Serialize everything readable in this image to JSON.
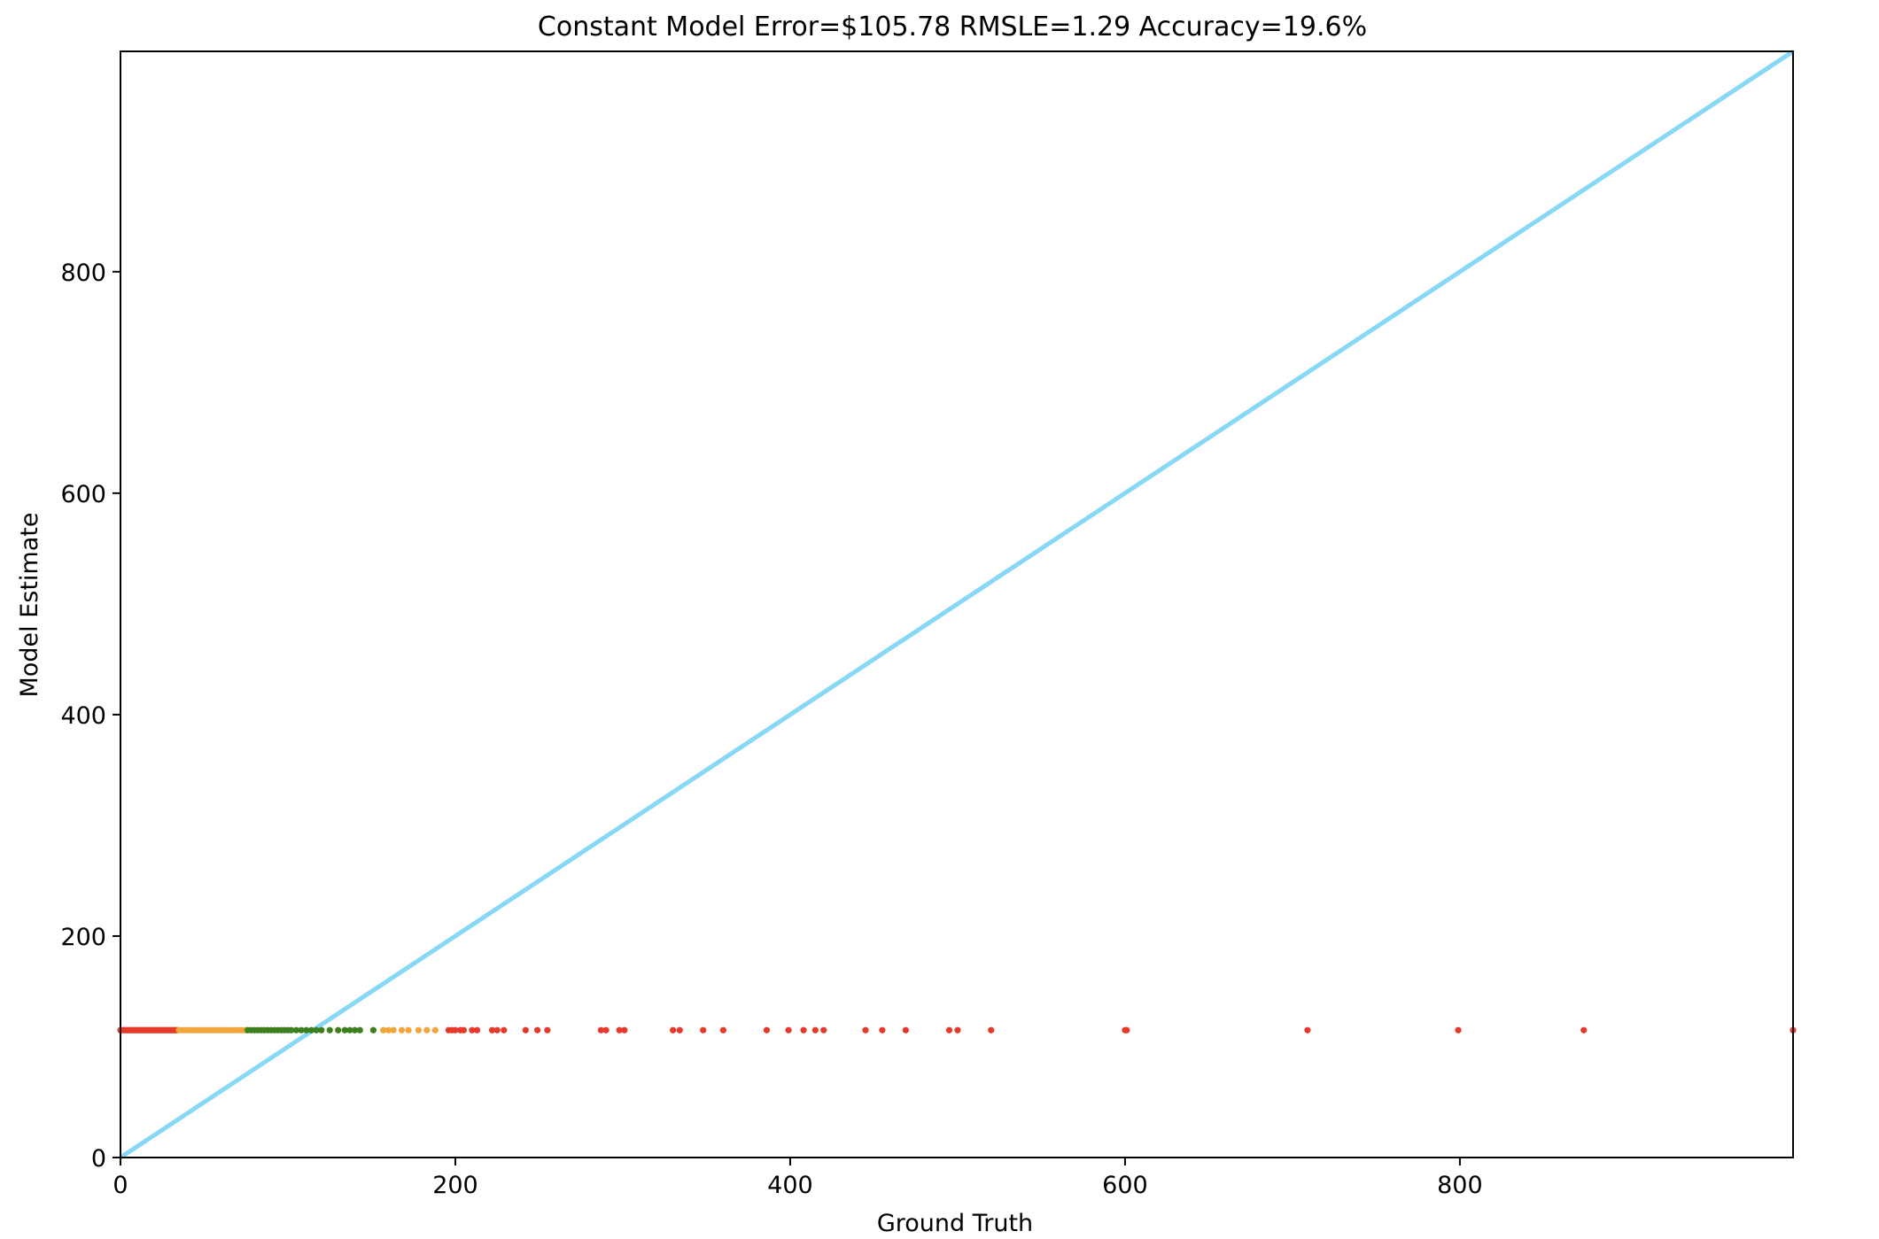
{
  "chart_data": {
    "type": "scatter",
    "title": "Constant Model  Error=$105.78  RMSLE=1.29  Accuracy=19.6%",
    "xlabel": "Ground Truth",
    "ylabel": "Model Estimate",
    "xlim": [
      0,
      999
    ],
    "ylim": [
      0,
      999
    ],
    "xticks": [
      0,
      200,
      400,
      600,
      800
    ],
    "yticks": [
      0,
      200,
      400,
      600,
      800
    ],
    "grid": false,
    "reference_line": {
      "x": [
        0,
        999
      ],
      "y": [
        0,
        999
      ],
      "color": "#87d7f7"
    },
    "constant_estimate": 115,
    "colors": {
      "red": "#e53a2b",
      "orange": "#f2a53a",
      "green": "#3d7f1e"
    },
    "points": {
      "red": [
        0,
        1,
        2,
        3,
        4,
        5,
        6,
        7,
        8,
        9,
        10,
        11,
        12,
        13,
        14,
        15,
        16,
        17,
        18,
        19,
        20,
        21,
        22,
        23,
        24,
        25,
        26,
        27,
        28,
        29,
        30,
        31,
        32,
        33,
        34,
        196,
        198,
        200,
        203,
        205,
        210,
        213,
        222,
        225,
        229,
        242,
        249,
        255,
        287,
        290,
        298,
        301,
        330,
        334,
        348,
        360,
        386,
        399,
        408,
        415,
        420,
        445,
        455,
        469,
        495,
        500,
        520,
        600,
        601,
        709,
        799,
        874,
        999
      ],
      "orange": [
        35,
        37,
        39,
        41,
        43,
        45,
        47,
        49,
        51,
        53,
        55,
        57,
        59,
        61,
        63,
        65,
        67,
        69,
        71,
        73,
        75,
        157,
        160,
        163,
        168,
        172,
        178,
        183,
        188
      ],
      "green": [
        76,
        78,
        80,
        82,
        84,
        86,
        88,
        90,
        92,
        94,
        96,
        98,
        100,
        102,
        105,
        108,
        111,
        114,
        117,
        120,
        125,
        130,
        134,
        137,
        140,
        143,
        151
      ]
    }
  }
}
